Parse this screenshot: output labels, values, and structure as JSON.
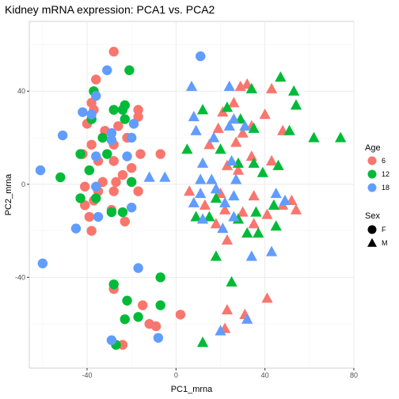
{
  "chart_data": {
    "type": "scatter",
    "title": "Kidney mRNA expression: PCA1 vs. PCA2",
    "xlabel": "PC1_mrna",
    "ylabel": "PC2_mrna",
    "xlim": [
      -66,
      80
    ],
    "ylim": [
      -79,
      70
    ],
    "xticks": [
      -40,
      0,
      40,
      80
    ],
    "yticks": [
      -40,
      0,
      40
    ],
    "grid": true,
    "legend_placement": "right",
    "legends": {
      "color": {
        "title": "Age",
        "entries": [
          {
            "label": "6",
            "color": "#F8766D"
          },
          {
            "label": "12",
            "color": "#00BA38"
          },
          {
            "label": "18",
            "color": "#619CFF"
          }
        ]
      },
      "shape": {
        "title": "Sex",
        "entries": [
          {
            "label": "F",
            "shape": "circle"
          },
          {
            "label": "M",
            "shape": "triangle"
          }
        ]
      }
    },
    "points": [
      {
        "x": -28,
        "y": 57,
        "age": "6",
        "sex": "F"
      },
      {
        "x": -36,
        "y": 45,
        "age": "6",
        "sex": "F"
      },
      {
        "x": -38,
        "y": 35,
        "age": "6",
        "sex": "F"
      },
      {
        "x": -37,
        "y": 32,
        "age": "6",
        "sex": "F"
      },
      {
        "x": -40,
        "y": 26,
        "age": "6",
        "sex": "F"
      },
      {
        "x": -32,
        "y": 23,
        "age": "6",
        "sex": "F"
      },
      {
        "x": -26,
        "y": 25,
        "age": "6",
        "sex": "F"
      },
      {
        "x": -17,
        "y": 32,
        "age": "6",
        "sex": "F"
      },
      {
        "x": -17,
        "y": 29,
        "age": "6",
        "sex": "F"
      },
      {
        "x": -22,
        "y": 20,
        "age": "6",
        "sex": "F"
      },
      {
        "x": -28,
        "y": 17,
        "age": "6",
        "sex": "F"
      },
      {
        "x": -38,
        "y": 17,
        "age": "6",
        "sex": "F"
      },
      {
        "x": -42,
        "y": 13,
        "age": "6",
        "sex": "F"
      },
      {
        "x": -35,
        "y": 10,
        "age": "6",
        "sex": "F"
      },
      {
        "x": -28,
        "y": 10,
        "age": "6",
        "sex": "F"
      },
      {
        "x": -24,
        "y": 4,
        "age": "6",
        "sex": "F"
      },
      {
        "x": -16,
        "y": 13,
        "age": "6",
        "sex": "F"
      },
      {
        "x": -20,
        "y": 7,
        "age": "6",
        "sex": "F"
      },
      {
        "x": -7,
        "y": 13,
        "age": "6",
        "sex": "F"
      },
      {
        "x": -33,
        "y": 1,
        "age": "6",
        "sex": "F"
      },
      {
        "x": -27,
        "y": 1,
        "age": "6",
        "sex": "F"
      },
      {
        "x": -41,
        "y": -1,
        "age": "6",
        "sex": "F"
      },
      {
        "x": -35,
        "y": -3,
        "age": "6",
        "sex": "F"
      },
      {
        "x": -28,
        "y": -3,
        "age": "6",
        "sex": "F"
      },
      {
        "x": -17,
        "y": -3,
        "age": "6",
        "sex": "F"
      },
      {
        "x": -37,
        "y": -7,
        "age": "6",
        "sex": "F"
      },
      {
        "x": -41,
        "y": -9,
        "age": "6",
        "sex": "F"
      },
      {
        "x": -39,
        "y": -14,
        "age": "6",
        "sex": "F"
      },
      {
        "x": -38,
        "y": -20,
        "age": "6",
        "sex": "F"
      },
      {
        "x": -29,
        "y": -11,
        "age": "6",
        "sex": "F"
      },
      {
        "x": -23,
        "y": -16,
        "age": "6",
        "sex": "F"
      },
      {
        "x": -28,
        "y": -45,
        "age": "6",
        "sex": "F"
      },
      {
        "x": -15,
        "y": -52,
        "age": "6",
        "sex": "F"
      },
      {
        "x": -12,
        "y": -60,
        "age": "6",
        "sex": "F"
      },
      {
        "x": -9,
        "y": -61,
        "age": "6",
        "sex": "F"
      },
      {
        "x": 2,
        "y": -56,
        "age": "6",
        "sex": "F"
      },
      {
        "x": -24,
        "y": -69,
        "age": "6",
        "sex": "F"
      },
      {
        "x": -21,
        "y": 49,
        "age": "12",
        "sex": "F"
      },
      {
        "x": -37,
        "y": 40,
        "age": "12",
        "sex": "F"
      },
      {
        "x": -28,
        "y": 32,
        "age": "12",
        "sex": "F"
      },
      {
        "x": -24,
        "y": 32,
        "age": "12",
        "sex": "F"
      },
      {
        "x": -23,
        "y": 34,
        "age": "12",
        "sex": "F"
      },
      {
        "x": -38,
        "y": 28,
        "age": "12",
        "sex": "F"
      },
      {
        "x": -23,
        "y": 28,
        "age": "12",
        "sex": "F"
      },
      {
        "x": -33,
        "y": 20,
        "age": "12",
        "sex": "F"
      },
      {
        "x": -43,
        "y": 13,
        "age": "12",
        "sex": "F"
      },
      {
        "x": -31,
        "y": 13,
        "age": "12",
        "sex": "F"
      },
      {
        "x": -39,
        "y": 6,
        "age": "12",
        "sex": "F"
      },
      {
        "x": -52,
        "y": 3,
        "age": "12",
        "sex": "F"
      },
      {
        "x": -43,
        "y": -6,
        "age": "12",
        "sex": "F"
      },
      {
        "x": -36,
        "y": -6,
        "age": "12",
        "sex": "F"
      },
      {
        "x": -29,
        "y": -12,
        "age": "12",
        "sex": "F"
      },
      {
        "x": -24,
        "y": -12,
        "age": "12",
        "sex": "F"
      },
      {
        "x": -20,
        "y": 1,
        "age": "12",
        "sex": "F"
      },
      {
        "x": -28,
        "y": -43,
        "age": "12",
        "sex": "F"
      },
      {
        "x": -22,
        "y": -50,
        "age": "12",
        "sex": "F"
      },
      {
        "x": -7,
        "y": -40,
        "age": "12",
        "sex": "F"
      },
      {
        "x": -17,
        "y": -57,
        "age": "12",
        "sex": "F"
      },
      {
        "x": -7,
        "y": -52,
        "age": "12",
        "sex": "F"
      },
      {
        "x": -23,
        "y": -58,
        "age": "12",
        "sex": "F"
      },
      {
        "x": -27,
        "y": -69,
        "age": "12",
        "sex": "F"
      },
      {
        "x": -31,
        "y": 49,
        "age": "18",
        "sex": "F"
      },
      {
        "x": 11,
        "y": 55,
        "age": "18",
        "sex": "F"
      },
      {
        "x": -36,
        "y": 38,
        "age": "18",
        "sex": "F"
      },
      {
        "x": -42,
        "y": 31,
        "age": "18",
        "sex": "F"
      },
      {
        "x": -38,
        "y": 30,
        "age": "18",
        "sex": "F"
      },
      {
        "x": -19,
        "y": 26,
        "age": "18",
        "sex": "F"
      },
      {
        "x": -51,
        "y": 21,
        "age": "18",
        "sex": "F"
      },
      {
        "x": -29,
        "y": 22,
        "age": "18",
        "sex": "F"
      },
      {
        "x": -29,
        "y": 19,
        "age": "18",
        "sex": "F"
      },
      {
        "x": -20,
        "y": 20,
        "age": "18",
        "sex": "F"
      },
      {
        "x": -36,
        "y": 12,
        "age": "18",
        "sex": "F"
      },
      {
        "x": -22,
        "y": 12,
        "age": "18",
        "sex": "F"
      },
      {
        "x": -61,
        "y": 6,
        "age": "18",
        "sex": "F"
      },
      {
        "x": -36,
        "y": -1,
        "age": "18",
        "sex": "F"
      },
      {
        "x": -20,
        "y": -10,
        "age": "18",
        "sex": "F"
      },
      {
        "x": -35,
        "y": -14,
        "age": "18",
        "sex": "F"
      },
      {
        "x": -45,
        "y": -19,
        "age": "18",
        "sex": "F"
      },
      {
        "x": -60,
        "y": -34,
        "age": "18",
        "sex": "F"
      },
      {
        "x": -17,
        "y": -36,
        "age": "18",
        "sex": "F"
      },
      {
        "x": -29,
        "y": -67,
        "age": "18",
        "sex": "F"
      },
      {
        "x": -8,
        "y": -66,
        "age": "18",
        "sex": "F"
      },
      {
        "x": 29,
        "y": 42,
        "age": "6",
        "sex": "M"
      },
      {
        "x": 32,
        "y": 43,
        "age": "6",
        "sex": "M"
      },
      {
        "x": 43,
        "y": 41,
        "age": "6",
        "sex": "M"
      },
      {
        "x": 26,
        "y": 35,
        "age": "6",
        "sex": "M"
      },
      {
        "x": 21,
        "y": 31,
        "age": "6",
        "sex": "M"
      },
      {
        "x": 40,
        "y": 30,
        "age": "6",
        "sex": "M"
      },
      {
        "x": 19,
        "y": 24,
        "age": "6",
        "sex": "M"
      },
      {
        "x": 34,
        "y": 25,
        "age": "6",
        "sex": "M"
      },
      {
        "x": 48,
        "y": 23,
        "age": "6",
        "sex": "M"
      },
      {
        "x": 30,
        "y": 22,
        "age": "6",
        "sex": "M"
      },
      {
        "x": 15,
        "y": 17,
        "age": "6",
        "sex": "M"
      },
      {
        "x": 27,
        "y": 18,
        "age": "6",
        "sex": "M"
      },
      {
        "x": 34,
        "y": 12,
        "age": "6",
        "sex": "M"
      },
      {
        "x": 43,
        "y": 10,
        "age": "6",
        "sex": "M"
      },
      {
        "x": 23,
        "y": 8,
        "age": "6",
        "sex": "M"
      },
      {
        "x": 28,
        "y": 6,
        "age": "6",
        "sex": "M"
      },
      {
        "x": 6,
        "y": -3,
        "age": "6",
        "sex": "M"
      },
      {
        "x": 20,
        "y": -4,
        "age": "6",
        "sex": "M"
      },
      {
        "x": 35,
        "y": -5,
        "age": "6",
        "sex": "M"
      },
      {
        "x": 52,
        "y": -7,
        "age": "6",
        "sex": "M"
      },
      {
        "x": 13,
        "y": -9,
        "age": "6",
        "sex": "M"
      },
      {
        "x": 22,
        "y": -11,
        "age": "6",
        "sex": "M"
      },
      {
        "x": 48,
        "y": -9,
        "age": "6",
        "sex": "M"
      },
      {
        "x": 30,
        "y": -12,
        "age": "6",
        "sex": "M"
      },
      {
        "x": 41,
        "y": -13,
        "age": "6",
        "sex": "M"
      },
      {
        "x": 18,
        "y": -17,
        "age": "6",
        "sex": "M"
      },
      {
        "x": 54,
        "y": -11,
        "age": "6",
        "sex": "M"
      },
      {
        "x": 35,
        "y": -17,
        "age": "6",
        "sex": "M"
      },
      {
        "x": 23,
        "y": -24,
        "age": "6",
        "sex": "M"
      },
      {
        "x": 41,
        "y": -49,
        "age": "6",
        "sex": "M"
      },
      {
        "x": 23,
        "y": -54,
        "age": "6",
        "sex": "M"
      },
      {
        "x": 31,
        "y": -56,
        "age": "6",
        "sex": "M"
      },
      {
        "x": 22,
        "y": -62,
        "age": "6",
        "sex": "M"
      },
      {
        "x": 54,
        "y": 34,
        "age": "12",
        "sex": "M"
      },
      {
        "x": 53,
        "y": 40,
        "age": "12",
        "sex": "M"
      },
      {
        "x": 34,
        "y": 41,
        "age": "12",
        "sex": "M"
      },
      {
        "x": 47,
        "y": 46,
        "age": "12",
        "sex": "M"
      },
      {
        "x": 23,
        "y": 33,
        "age": "12",
        "sex": "M"
      },
      {
        "x": 12,
        "y": 32,
        "age": "12",
        "sex": "M"
      },
      {
        "x": 29,
        "y": 28,
        "age": "12",
        "sex": "M"
      },
      {
        "x": 35,
        "y": 24,
        "age": "12",
        "sex": "M"
      },
      {
        "x": 51,
        "y": 23,
        "age": "12",
        "sex": "M"
      },
      {
        "x": 62,
        "y": 20,
        "age": "12",
        "sex": "M"
      },
      {
        "x": 74,
        "y": 20,
        "age": "12",
        "sex": "M"
      },
      {
        "x": 20,
        "y": 15,
        "age": "12",
        "sex": "M"
      },
      {
        "x": 5,
        "y": 15,
        "age": "12",
        "sex": "M"
      },
      {
        "x": 28,
        "y": 9,
        "age": "12",
        "sex": "M"
      },
      {
        "x": 35,
        "y": 9,
        "age": "12",
        "sex": "M"
      },
      {
        "x": 46,
        "y": 8,
        "age": "12",
        "sex": "M"
      },
      {
        "x": 39,
        "y": 5,
        "age": "12",
        "sex": "M"
      },
      {
        "x": 18,
        "y": -6,
        "age": "12",
        "sex": "M"
      },
      {
        "x": 44,
        "y": -9,
        "age": "12",
        "sex": "M"
      },
      {
        "x": 36,
        "y": -12,
        "age": "12",
        "sex": "M"
      },
      {
        "x": 9,
        "y": -14,
        "age": "12",
        "sex": "M"
      },
      {
        "x": 15,
        "y": -14,
        "age": "12",
        "sex": "M"
      },
      {
        "x": 28,
        "y": -15,
        "age": "12",
        "sex": "M"
      },
      {
        "x": 45,
        "y": -18,
        "age": "12",
        "sex": "M"
      },
      {
        "x": 32,
        "y": -21,
        "age": "12",
        "sex": "M"
      },
      {
        "x": 37,
        "y": -21,
        "age": "12",
        "sex": "M"
      },
      {
        "x": 18,
        "y": -31,
        "age": "12",
        "sex": "M"
      },
      {
        "x": 25,
        "y": -42,
        "age": "12",
        "sex": "M"
      },
      {
        "x": 12,
        "y": -68,
        "age": "12",
        "sex": "M"
      },
      {
        "x": 7,
        "y": 42,
        "age": "18",
        "sex": "M"
      },
      {
        "x": 24,
        "y": 42,
        "age": "18",
        "sex": "M"
      },
      {
        "x": 8,
        "y": 29,
        "age": "18",
        "sex": "M"
      },
      {
        "x": 24,
        "y": 25,
        "age": "18",
        "sex": "M"
      },
      {
        "x": 26,
        "y": 28,
        "age": "18",
        "sex": "M"
      },
      {
        "x": 31,
        "y": 25,
        "age": "18",
        "sex": "M"
      },
      {
        "x": 9,
        "y": 23,
        "age": "18",
        "sex": "M"
      },
      {
        "x": 17,
        "y": 20,
        "age": "18",
        "sex": "M"
      },
      {
        "x": 12,
        "y": 9,
        "age": "18",
        "sex": "M"
      },
      {
        "x": 25,
        "y": 10,
        "age": "18",
        "sex": "M"
      },
      {
        "x": -12,
        "y": 3,
        "age": "18",
        "sex": "M"
      },
      {
        "x": -5,
        "y": 3,
        "age": "18",
        "sex": "M"
      },
      {
        "x": 11,
        "y": 2,
        "age": "18",
        "sex": "M"
      },
      {
        "x": 16,
        "y": 2,
        "age": "18",
        "sex": "M"
      },
      {
        "x": 27,
        "y": 2,
        "age": "18",
        "sex": "M"
      },
      {
        "x": 18,
        "y": -2,
        "age": "18",
        "sex": "M"
      },
      {
        "x": 11,
        "y": -4,
        "age": "18",
        "sex": "M"
      },
      {
        "x": 26,
        "y": -5,
        "age": "18",
        "sex": "M"
      },
      {
        "x": 8,
        "y": -8,
        "age": "18",
        "sex": "M"
      },
      {
        "x": 22,
        "y": -8,
        "age": "18",
        "sex": "M"
      },
      {
        "x": 45,
        "y": -4,
        "age": "18",
        "sex": "M"
      },
      {
        "x": 49,
        "y": -7,
        "age": "18",
        "sex": "M"
      },
      {
        "x": 12,
        "y": -15,
        "age": "18",
        "sex": "M"
      },
      {
        "x": 26,
        "y": -14,
        "age": "18",
        "sex": "M"
      },
      {
        "x": 21,
        "y": -19,
        "age": "18",
        "sex": "M"
      },
      {
        "x": 43,
        "y": -29,
        "age": "18",
        "sex": "M"
      },
      {
        "x": 34,
        "y": -31,
        "age": "18",
        "sex": "M"
      },
      {
        "x": 32,
        "y": -58,
        "age": "18",
        "sex": "M"
      },
      {
        "x": 20,
        "y": -63,
        "age": "18",
        "sex": "M"
      }
    ]
  }
}
